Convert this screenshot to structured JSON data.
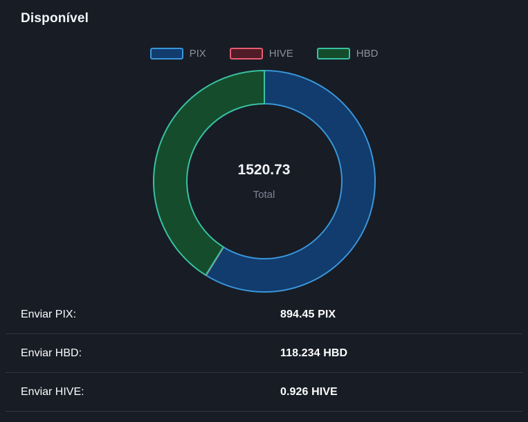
{
  "header": {
    "title": "Disponível"
  },
  "chart_data": {
    "type": "pie",
    "subtype": "doughnut",
    "legend_position": "top",
    "labels": [
      "PIX",
      "HIVE",
      "HBD"
    ],
    "values": [
      894.45,
      0.926,
      625.354
    ],
    "total": 1520.73,
    "cutout_percent": 70,
    "start_angle_deg": 0,
    "direction": "clockwise",
    "center": {
      "value": "1520.73",
      "label": "Total"
    },
    "series_colors": [
      {
        "label": "PIX",
        "fill": "#113c6d",
        "border": "#3996db"
      },
      {
        "label": "HIVE",
        "fill": "#4f1c27",
        "border": "#e85c70"
      },
      {
        "label": "HBD",
        "fill": "#154d2c",
        "border": "#38c2a3"
      }
    ]
  },
  "rows": [
    {
      "label": "Enviar PIX:",
      "value": "894.45 PIX"
    },
    {
      "label": "Enviar HBD:",
      "value": "118.234 HBD"
    },
    {
      "label": "Enviar HIVE:",
      "value": "0.926 HIVE"
    }
  ]
}
